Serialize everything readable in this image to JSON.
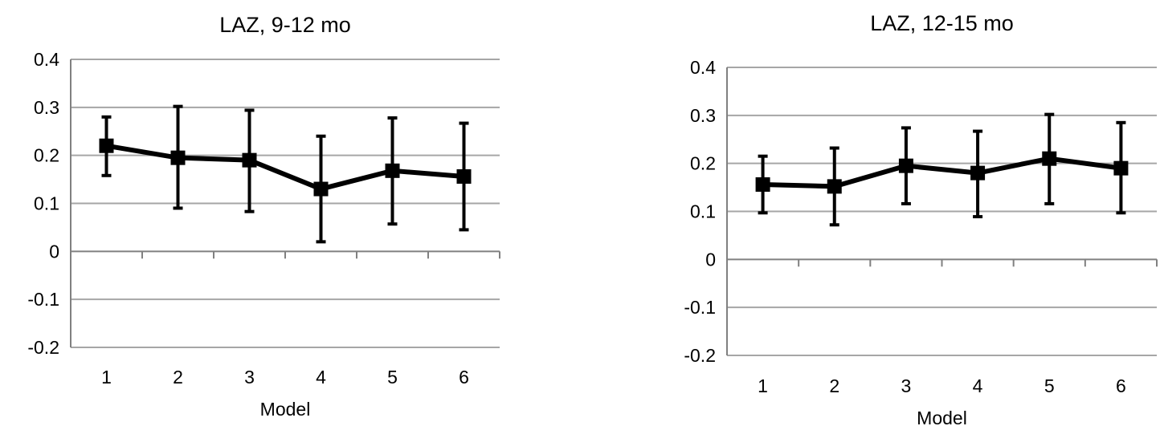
{
  "chart_data": [
    {
      "type": "line",
      "title": "LAZ, 9-12 mo",
      "xlabel": "Model",
      "ylabel": "",
      "categories": [
        "1",
        "2",
        "3",
        "4",
        "5",
        "6"
      ],
      "ylim": [
        -0.2,
        0.4
      ],
      "yticks": [
        "0.4",
        "0.3",
        "0.2",
        "0.1",
        "0",
        "-0.1",
        "-0.2"
      ],
      "grid": true,
      "series": [
        {
          "values": [
            0.22,
            0.195,
            0.19,
            0.13,
            0.168,
            0.156
          ],
          "lower": [
            0.158,
            0.09,
            0.083,
            0.02,
            0.057,
            0.045
          ],
          "upper": [
            0.28,
            0.302,
            0.294,
            0.24,
            0.278,
            0.267
          ]
        }
      ],
      "line_color": "#000000",
      "grid_color": "#a6a6a6"
    },
    {
      "type": "line",
      "title": "LAZ, 12-15 mo",
      "xlabel": "Model",
      "ylabel": "",
      "categories": [
        "1",
        "2",
        "3",
        "4",
        "5",
        "6"
      ],
      "ylim": [
        -0.2,
        0.4
      ],
      "yticks": [
        "0.4",
        "0.3",
        "0.2",
        "0.1",
        "0",
        "-0.1",
        "-0.2"
      ],
      "grid": true,
      "series": [
        {
          "values": [
            0.156,
            0.152,
            0.195,
            0.18,
            0.21,
            0.19
          ],
          "lower": [
            0.097,
            0.072,
            0.116,
            0.089,
            0.116,
            0.097
          ],
          "upper": [
            0.215,
            0.232,
            0.274,
            0.267,
            0.302,
            0.285
          ]
        }
      ],
      "line_color": "#000000",
      "grid_color": "#a6a6a6"
    }
  ]
}
